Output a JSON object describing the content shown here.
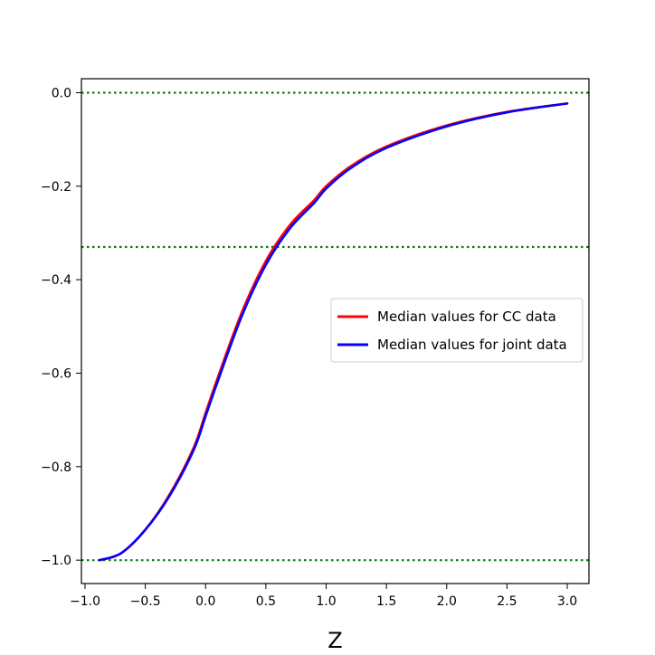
{
  "chart_data": {
    "type": "line",
    "title": "",
    "xlabel": "Z",
    "ylabel": "",
    "xlim": [
      -1.03,
      3.18
    ],
    "ylim": [
      -1.05,
      0.03
    ],
    "xticks": [
      -1.0,
      -0.5,
      0.0,
      0.5,
      1.0,
      1.5,
      2.0,
      2.5,
      3.0
    ],
    "xtick_labels": [
      "−1.0",
      "−0.5",
      "0.0",
      "0.5",
      "1.0",
      "1.5",
      "2.0",
      "2.5",
      "3.0"
    ],
    "yticks": [
      0.0,
      -0.2,
      -0.4,
      -0.6,
      -0.8,
      -1.0
    ],
    "ytick_labels": [
      "0.0",
      "−0.2",
      "−0.4",
      "−0.6",
      "−0.8",
      "−1.0"
    ],
    "grid": false,
    "legend_position": "center-right",
    "hlines": [
      {
        "y": 0.0,
        "color": "#008000",
        "style": "dotted"
      },
      {
        "y": -0.33,
        "color": "#008000",
        "style": "dotted"
      },
      {
        "y": -1.0,
        "color": "#008000",
        "style": "dotted"
      }
    ],
    "series": [
      {
        "name": "Median values for CC data",
        "color": "#ff0000",
        "x": [
          -0.88,
          -0.7,
          -0.5,
          -0.3,
          -0.1,
          0.0,
          0.1,
          0.3,
          0.5,
          0.7,
          0.9,
          1.0,
          1.2,
          1.5,
          2.0,
          2.5,
          3.0
        ],
        "y": [
          -1.0,
          -0.985,
          -0.935,
          -0.86,
          -0.76,
          -0.685,
          -0.61,
          -0.47,
          -0.36,
          -0.283,
          -0.23,
          -0.2,
          -0.158,
          -0.115,
          -0.07,
          -0.041,
          -0.023
        ]
      },
      {
        "name": "Median values for joint data",
        "color": "#0000ff",
        "x": [
          -0.88,
          -0.7,
          -0.5,
          -0.3,
          -0.1,
          0.0,
          0.1,
          0.3,
          0.5,
          0.7,
          0.9,
          1.0,
          1.2,
          1.5,
          2.0,
          2.5,
          3.0
        ],
        "y": [
          -1.0,
          -0.985,
          -0.935,
          -0.863,
          -0.765,
          -0.692,
          -0.618,
          -0.478,
          -0.368,
          -0.29,
          -0.236,
          -0.205,
          -0.162,
          -0.118,
          -0.072,
          -0.042,
          -0.023
        ]
      }
    ]
  }
}
